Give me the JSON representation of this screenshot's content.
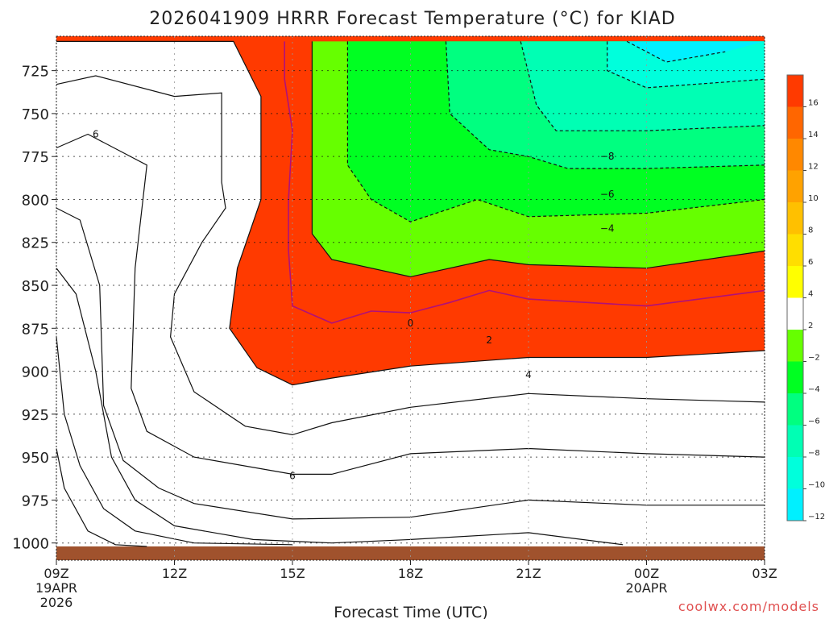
{
  "chart_data": {
    "type": "heatmap",
    "title": "2026041909 HRRR Forecast Temperature (°C) for KIAD",
    "xlabel": "Forecast Time (UTC)",
    "ylabel": "",
    "y_axis": {
      "unit": "hPa",
      "inverted": true,
      "range": [
        705,
        1010
      ],
      "ticks": [
        "725",
        "750",
        "775",
        "800",
        "825",
        "850",
        "875",
        "900",
        "925",
        "950",
        "975",
        "1000"
      ]
    },
    "x_axis": {
      "unit": "hours from 09Z 19APR 2026",
      "range": [
        0,
        18
      ],
      "ticks": [
        {
          "t": 0,
          "label": "09Z",
          "sub1": "19APR",
          "sub2": "2026"
        },
        {
          "t": 3,
          "label": "12Z",
          "sub1": "",
          "sub2": ""
        },
        {
          "t": 6,
          "label": "15Z",
          "sub1": "",
          "sub2": ""
        },
        {
          "t": 9,
          "label": "18Z",
          "sub1": "",
          "sub2": ""
        },
        {
          "t": 12,
          "label": "21Z",
          "sub1": "",
          "sub2": ""
        },
        {
          "t": 15,
          "label": "00Z",
          "sub1": "20APR",
          "sub2": ""
        },
        {
          "t": 18,
          "label": "03Z",
          "sub1": "",
          "sub2": ""
        }
      ]
    },
    "grid": true,
    "colorbar": {
      "placement": "right",
      "ticks": [
        "16",
        "14",
        "12",
        "10",
        "8",
        "6",
        "4",
        "2",
        "−2",
        "−4",
        "−6",
        "−8",
        "−10",
        "−12"
      ],
      "bins": [
        {
          "color": "#ff3a00"
        },
        {
          "color": "#ff6600"
        },
        {
          "color": "#ff8800"
        },
        {
          "color": "#ffa200"
        },
        {
          "color": "#ffc000"
        },
        {
          "color": "#ffde00"
        },
        {
          "color": "#ffff00"
        },
        {
          "color": "#ffffff"
        },
        {
          "color": "#66ff00"
        },
        {
          "color": "#00ff22"
        },
        {
          "color": "#00ff80"
        },
        {
          "color": "#00ffb4"
        },
        {
          "color": "#00ffdc"
        },
        {
          "color": "#00f0ff"
        }
      ]
    },
    "ground": {
      "color": "#a0522d",
      "top_hPa": 1002
    },
    "bands": [
      {
        "level": 16,
        "color": "#ff6600",
        "pts": [
          [
            0,
            1010
          ],
          [
            0,
            945
          ],
          [
            0.2,
            968
          ],
          [
            0.8,
            993
          ],
          [
            1.5,
            1001
          ],
          [
            2.3,
            1002
          ],
          [
            2.3,
            1010
          ]
        ]
      },
      {
        "level": 14,
        "color": "#ff8800",
        "pts": [
          [
            0,
            1010
          ],
          [
            0,
            880
          ],
          [
            0.2,
            925
          ],
          [
            0.6,
            955
          ],
          [
            1.2,
            980
          ],
          [
            2,
            993
          ],
          [
            3.5,
            1000
          ],
          [
            6,
            1001
          ],
          [
            6,
            1010
          ]
        ]
      },
      {
        "level": 12,
        "color": "#ffa200",
        "pts": [
          [
            0,
            1010
          ],
          [
            0,
            840
          ],
          [
            0.5,
            855
          ],
          [
            1,
            900
          ],
          [
            1.4,
            950
          ],
          [
            2,
            975
          ],
          [
            3,
            990
          ],
          [
            5,
            998
          ],
          [
            7,
            1000
          ],
          [
            9,
            998
          ],
          [
            12,
            994
          ],
          [
            14.4,
            1001
          ],
          [
            14.4,
            1010
          ]
        ]
      },
      {
        "level": 10,
        "color": "#ffc000",
        "pts": [
          [
            0,
            1010
          ],
          [
            0,
            805
          ],
          [
            0.6,
            812
          ],
          [
            1.1,
            850
          ],
          [
            1.2,
            920
          ],
          [
            1.7,
            952
          ],
          [
            2.6,
            968
          ],
          [
            3.5,
            977
          ],
          [
            6,
            986
          ],
          [
            9,
            985
          ],
          [
            12,
            975
          ],
          [
            15,
            978
          ],
          [
            18,
            978
          ],
          [
            18,
            1010
          ]
        ]
      },
      {
        "level": 8,
        "color": "#ffde00",
        "pts": [
          [
            0,
            1010
          ],
          [
            0,
            770
          ],
          [
            0.8,
            762
          ],
          [
            2.3,
            780
          ],
          [
            2.0,
            840
          ],
          [
            1.9,
            910
          ],
          [
            2.3,
            935
          ],
          [
            3.5,
            950
          ],
          [
            6,
            960
          ],
          [
            7,
            960
          ],
          [
            9,
            948
          ],
          [
            12,
            945
          ],
          [
            15,
            948
          ],
          [
            18,
            950
          ],
          [
            18,
            1010
          ]
        ]
      },
      {
        "level": 6,
        "color": "#ffff00",
        "pts": [
          [
            0,
            1010
          ],
          [
            0,
            733
          ],
          [
            1,
            728
          ],
          [
            3,
            740
          ],
          [
            4.2,
            738
          ],
          [
            4.2,
            790
          ],
          [
            4.3,
            805
          ],
          [
            3.7,
            825
          ],
          [
            3.0,
            855
          ],
          [
            2.9,
            880
          ],
          [
            3.5,
            912
          ],
          [
            4.8,
            932
          ],
          [
            6,
            937
          ],
          [
            7,
            930
          ],
          [
            9,
            921
          ],
          [
            12,
            913
          ],
          [
            15,
            916
          ],
          [
            18,
            918
          ],
          [
            18,
            1010
          ]
        ]
      },
      {
        "level": 4,
        "color": "#ffffff",
        "pts": [
          [
            0,
            1010
          ],
          [
            0,
            708
          ],
          [
            4.5,
            708
          ],
          [
            5.2,
            740
          ],
          [
            5.2,
            800
          ],
          [
            4.6,
            840
          ],
          [
            4.4,
            875
          ],
          [
            5.1,
            898
          ],
          [
            6,
            908
          ],
          [
            7,
            904
          ],
          [
            9,
            897
          ],
          [
            12,
            892
          ],
          [
            15,
            892
          ],
          [
            18,
            888
          ],
          [
            18,
            1010
          ]
        ]
      },
      {
        "level": 2,
        "color": "#66ff00",
        "pts": [
          [
            6.5,
            708
          ],
          [
            6.5,
            820
          ],
          [
            7,
            835
          ],
          [
            9,
            845
          ],
          [
            11,
            835
          ],
          [
            12,
            838
          ],
          [
            15,
            840
          ],
          [
            18,
            830
          ],
          [
            18,
            708
          ]
        ]
      },
      {
        "level": -2,
        "color": "#00ff22",
        "pts": [
          [
            7.4,
            708
          ],
          [
            7.4,
            780
          ],
          [
            8,
            800
          ],
          [
            9,
            813
          ],
          [
            10.7,
            800
          ],
          [
            12,
            810
          ],
          [
            15,
            808
          ],
          [
            18,
            800
          ],
          [
            18,
            708
          ]
        ]
      },
      {
        "level": -4,
        "color": "#00ff80",
        "pts": [
          [
            9.9,
            708
          ],
          [
            10,
            750
          ],
          [
            11,
            771
          ],
          [
            12,
            775
          ],
          [
            13,
            782
          ],
          [
            15,
            782
          ],
          [
            18,
            780
          ],
          [
            18,
            708
          ]
        ]
      },
      {
        "level": -6,
        "color": "#00ffb4",
        "pts": [
          [
            11.8,
            708
          ],
          [
            12.2,
            745
          ],
          [
            12.7,
            760
          ],
          [
            15,
            760
          ],
          [
            18,
            757
          ],
          [
            18,
            708
          ]
        ]
      },
      {
        "level": -8,
        "color": "#00ffdc",
        "pts": [
          [
            14,
            708
          ],
          [
            14,
            725
          ],
          [
            15,
            735
          ],
          [
            18,
            730
          ],
          [
            18,
            708
          ]
        ]
      },
      {
        "level": -10,
        "color": "#00f0ff",
        "pts": [
          [
            14.5,
            708
          ],
          [
            15.5,
            720
          ],
          [
            17,
            714
          ],
          [
            18,
            708
          ]
        ]
      }
    ],
    "contour_labels": [
      {
        "t": 1,
        "p": 762,
        "text": "6"
      },
      {
        "t": 12,
        "p": 902,
        "text": "4"
      },
      {
        "t": 11,
        "p": 882,
        "text": "2"
      },
      {
        "t": 9,
        "p": 872,
        "text": "0"
      },
      {
        "t": 6,
        "p": 961,
        "text": "6"
      },
      {
        "t": 14,
        "p": 775,
        "text": "−8"
      },
      {
        "t": 14,
        "p": 797,
        "text": "−6"
      },
      {
        "t": 14,
        "p": 817,
        "text": "−4"
      }
    ],
    "zero_line": [
      [
        5.8,
        708
      ],
      [
        5.8,
        730
      ],
      [
        6,
        760
      ],
      [
        5.9,
        800
      ],
      [
        5.9,
        830
      ],
      [
        6,
        862
      ],
      [
        7,
        872
      ],
      [
        8,
        865
      ],
      [
        9,
        866
      ],
      [
        10,
        860
      ],
      [
        11,
        853
      ],
      [
        12,
        858
      ],
      [
        15,
        862
      ],
      [
        18,
        853
      ]
    ]
  },
  "credit": "coolwx.com/models"
}
